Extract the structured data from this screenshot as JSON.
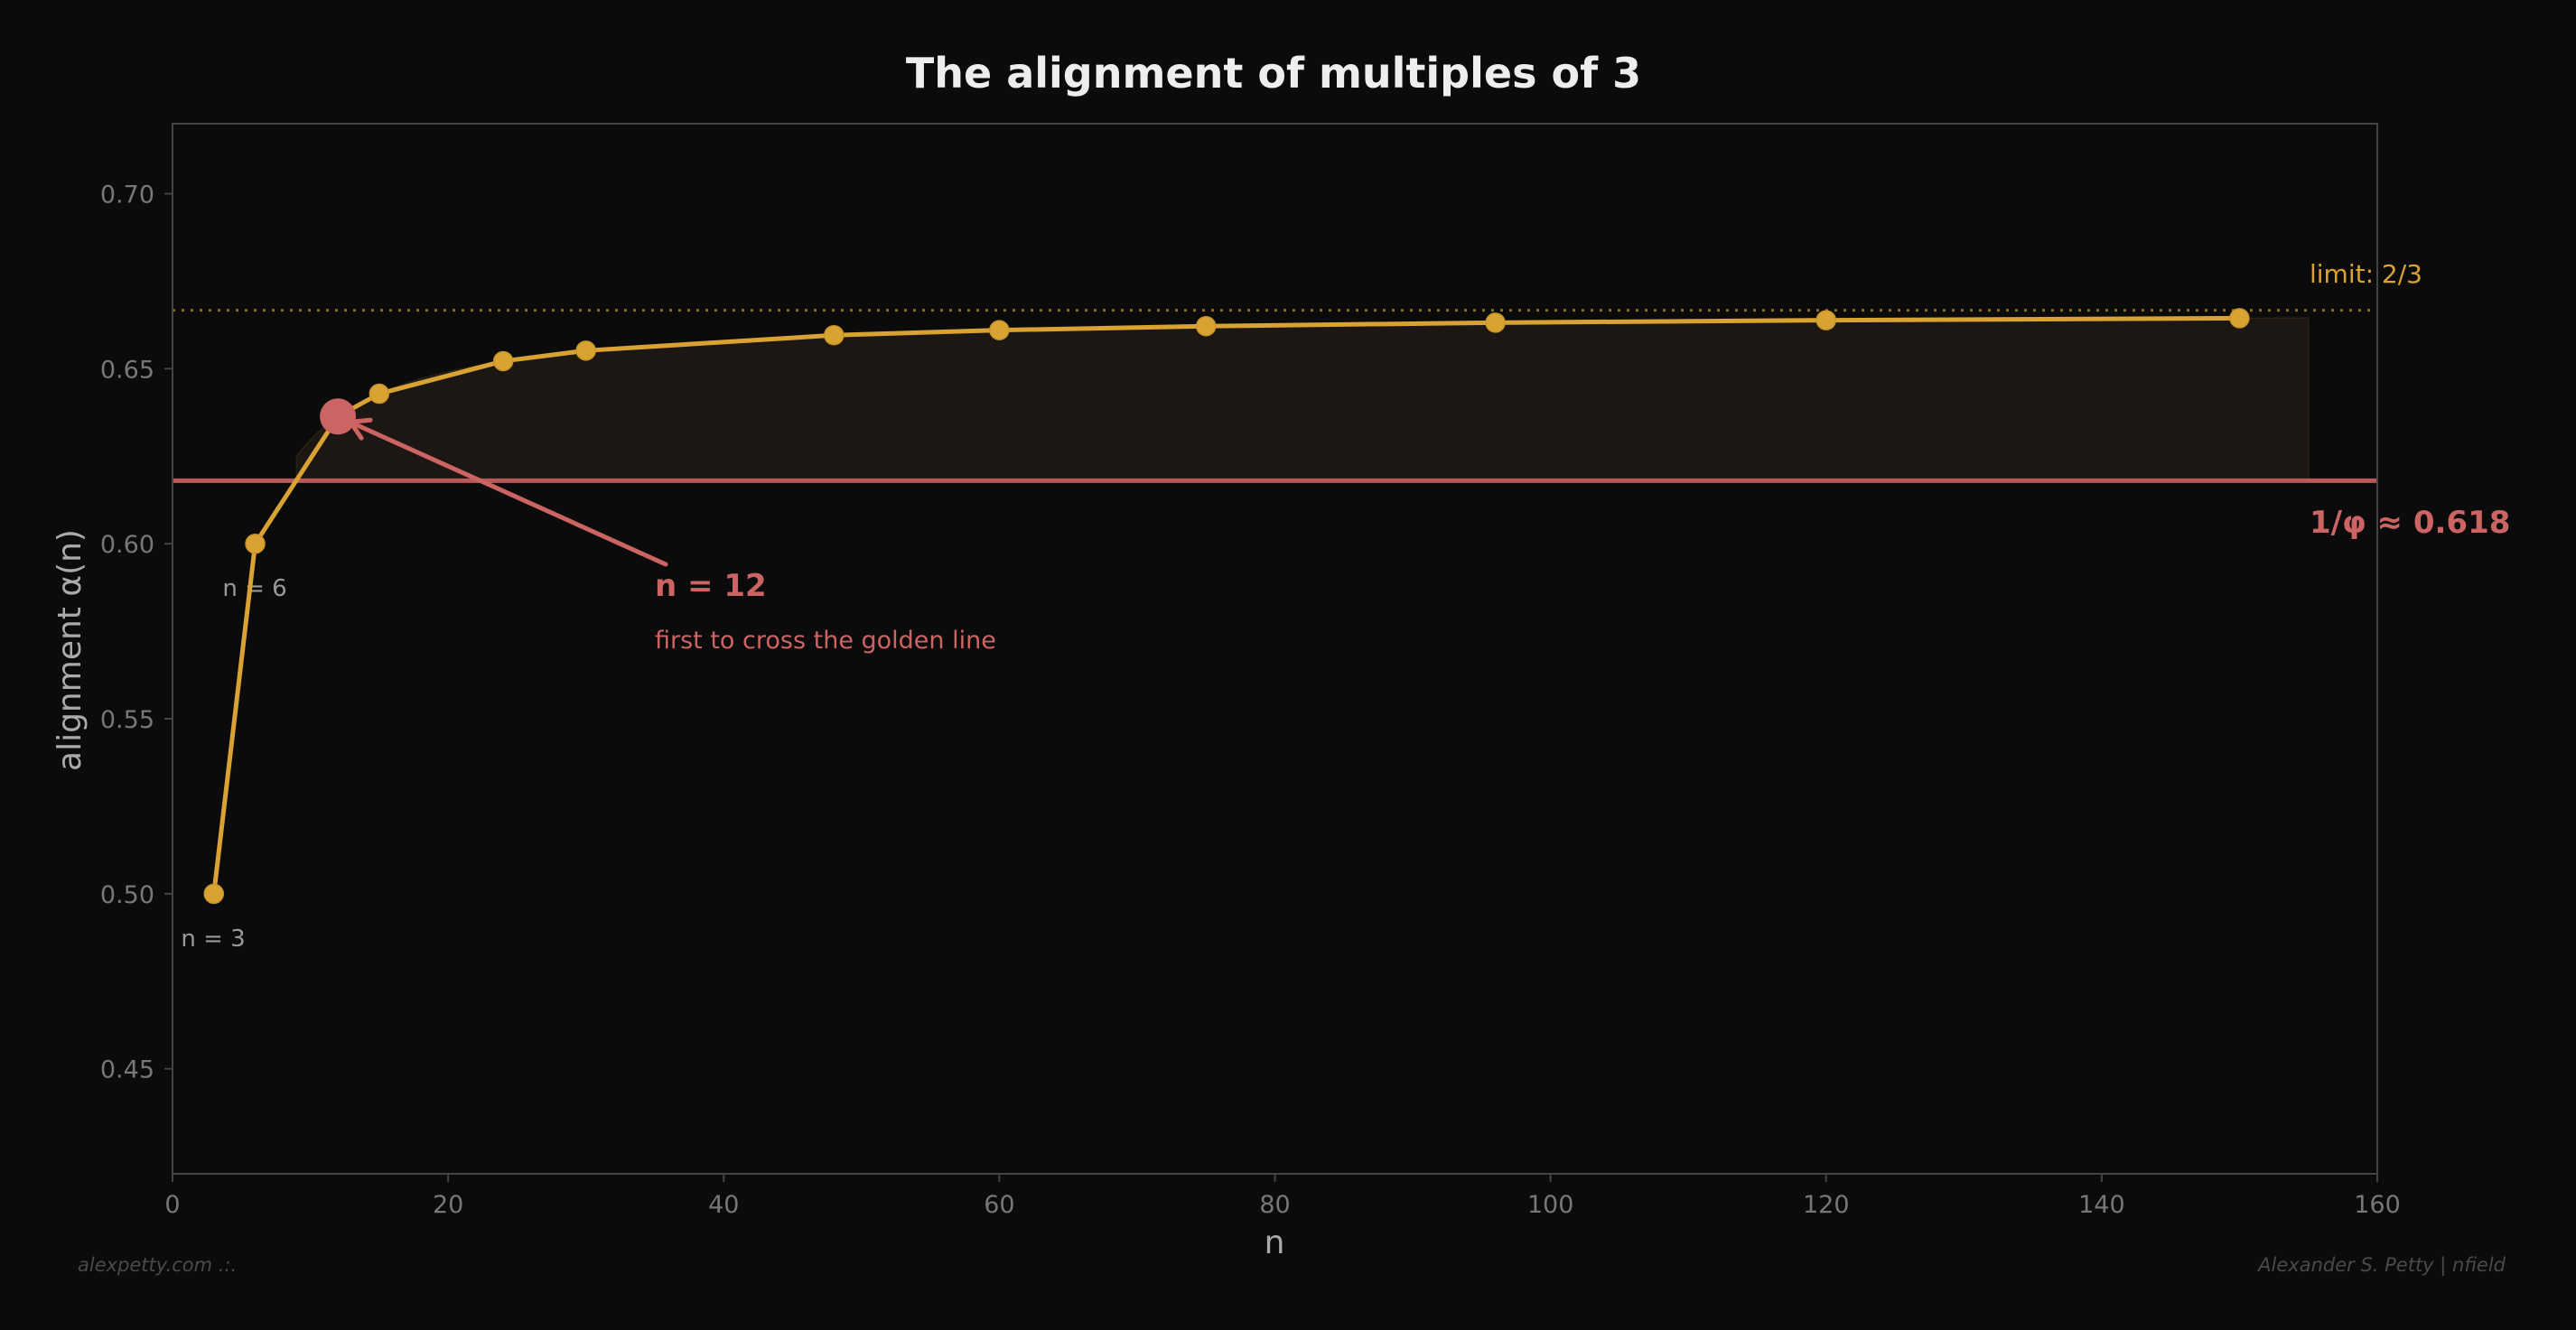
{
  "chart_data": {
    "type": "line",
    "title": "The alignment of multiples of 3",
    "xlabel": "n",
    "ylabel": "alignment α(n)",
    "xlim": [
      0,
      160
    ],
    "ylim": [
      0.42,
      0.72
    ],
    "xticks": [
      0,
      20,
      40,
      60,
      80,
      100,
      120,
      140,
      160
    ],
    "xtick_labels": [
      "0",
      "20",
      "40",
      "60",
      "80",
      "100",
      "120",
      "140",
      "160"
    ],
    "yticks": [
      0.45,
      0.5,
      0.55,
      0.6,
      0.65,
      0.7
    ],
    "ytick_labels": [
      "0.45",
      "0.50",
      "0.55",
      "0.60",
      "0.65",
      "0.70"
    ],
    "grid": false,
    "series": [
      {
        "name": "alignment α(n)",
        "color": "#d9a334",
        "x": [
          3,
          6,
          12,
          15,
          24,
          30,
          48,
          60,
          75,
          96,
          120,
          150
        ],
        "values": [
          0.5,
          0.6,
          0.636,
          0.643,
          0.652,
          0.655,
          0.66,
          0.661,
          0.662,
          0.663,
          0.664,
          0.664
        ]
      }
    ],
    "reference_lines": [
      {
        "name": "golden line",
        "y": 0.618,
        "label": "1/φ ≈ 0.618",
        "color": "#cd6464",
        "style": "solid"
      },
      {
        "name": "limit",
        "y": 0.6667,
        "label": "limit: 2/3",
        "color": "#d9a334",
        "style": "dotted"
      }
    ],
    "shaded_region": {
      "x_from": 9,
      "x_to": 155,
      "between": [
        "series",
        "golden line"
      ],
      "color": "#1c1712"
    },
    "highlight": {
      "x": 12,
      "y": 0.636,
      "color": "#cd6464"
    },
    "annotations": [
      {
        "text": "n = 3",
        "x": 3,
        "y": 0.488
      },
      {
        "text": "n = 6",
        "x": 6,
        "y": 0.588
      },
      {
        "text": "n = 12",
        "x": 35,
        "y": 0.588,
        "arrow_to": [
          12,
          0.636
        ]
      },
      {
        "text": "first to cross the golden line",
        "x": 35,
        "y": 0.573
      },
      {
        "text": "limit: 2/3",
        "x": 155,
        "y": 0.675
      },
      {
        "text": "1/φ ≈ 0.618",
        "x": 155,
        "y": 0.603
      }
    ]
  },
  "annotations": {
    "n3": "n = 3",
    "n6": "n = 6",
    "n12_title": "n = 12",
    "n12_sub": "first to cross the golden line",
    "limit": "limit: 2/3",
    "golden": "1/φ ≈ 0.618"
  },
  "footer": {
    "left": "alexpetty.com  .:.",
    "right": "Alexander S. Petty  |  nfield"
  },
  "colors": {
    "background": "#0b0b0b",
    "series": "#d9a334",
    "golden": "#cd6464",
    "golden_line": "#b65a5a",
    "fill": "#1c1712",
    "axis": "#444444"
  }
}
